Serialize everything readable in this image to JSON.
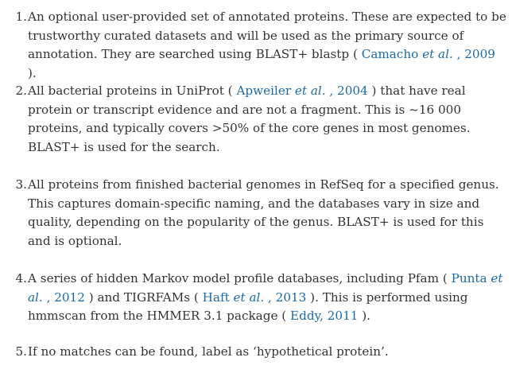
{
  "items": [
    {
      "number": "1.",
      "text_before": "An optional user-provided set of annotated proteins. These are expected to be trustworthy curated datasets and will be used as the primary source of annotation. They are searched using BLAST+ blastp ( ",
      "ref1": {
        "author": "Camacho ",
        "etal": "et al.",
        "year": " , 2009"
      },
      "text_after": " )."
    },
    {
      "number": "2.",
      "text_before": "All bacterial proteins in UniProt ( ",
      "ref1": {
        "author": "Apweiler ",
        "etal": "et al.",
        "year": " , 2004"
      },
      "text_after": " ) that have real protein or transcript evidence and are not a fragment. This is ~16 000 proteins, and typically covers >50% of the core genes in most genomes. BLAST+ is used for the search."
    },
    {
      "number": "3.",
      "text": "All proteins from finished bacterial genomes in RefSeq for a specified genus. This captures domain-specific naming, and the databases vary in size and quality, depending on the popularity of the genus. BLAST+ is used for this and is optional."
    },
    {
      "number": "4.",
      "text_before": "A series of hidden Markov model profile databases, including Pfam ( ",
      "ref1": {
        "author": "Punta ",
        "etal": "et al.",
        "year": " , 2012"
      },
      "text_mid": " ) and TIGRFAMs ( ",
      "ref2": {
        "author": "Haft ",
        "etal": "et al.",
        "year": " , 2013"
      },
      "text_mid2": " ). This is performed using hmmscan from the HMMER 3.1 package ( ",
      "ref3": {
        "text": "Eddy, 2011"
      },
      "text_after": " )."
    },
    {
      "number": "5.",
      "text": "If no matches can be found, label as ‘hypothetical protein’."
    }
  ]
}
